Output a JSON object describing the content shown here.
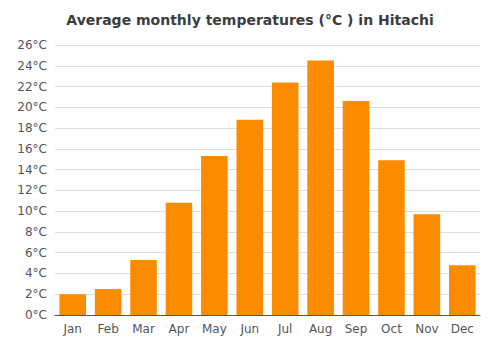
{
  "chart_data": {
    "type": "bar",
    "title": "Average monthly temperatures (°C ) in Hitachi",
    "categories": [
      "Jan",
      "Feb",
      "Mar",
      "Apr",
      "May",
      "Jun",
      "Jul",
      "Aug",
      "Sep",
      "Oct",
      "Nov",
      "Dec"
    ],
    "values": [
      2.0,
      2.5,
      5.3,
      10.8,
      15.3,
      18.8,
      22.4,
      24.5,
      20.6,
      14.9,
      9.7,
      4.8
    ],
    "color": "#FB8C00",
    "ylim": [
      0,
      26
    ],
    "yticks": [
      {
        "value": 0,
        "label": "0°C"
      },
      {
        "value": 2,
        "label": "2°C"
      },
      {
        "value": 4,
        "label": "4°C"
      },
      {
        "value": 6,
        "label": "6°C"
      },
      {
        "value": 8,
        "label": "8°C"
      },
      {
        "value": 10,
        "label": "10°C"
      },
      {
        "value": 12,
        "label": "12°C"
      },
      {
        "value": 14,
        "label": "14°C"
      },
      {
        "value": 16,
        "label": "16°C"
      },
      {
        "value": 18,
        "label": "18°C"
      },
      {
        "value": 20,
        "label": "20°C"
      },
      {
        "value": 22,
        "label": "22°C"
      },
      {
        "value": 24,
        "label": "24°C"
      },
      {
        "value": 26,
        "label": "26°C"
      }
    ],
    "grid": true
  }
}
